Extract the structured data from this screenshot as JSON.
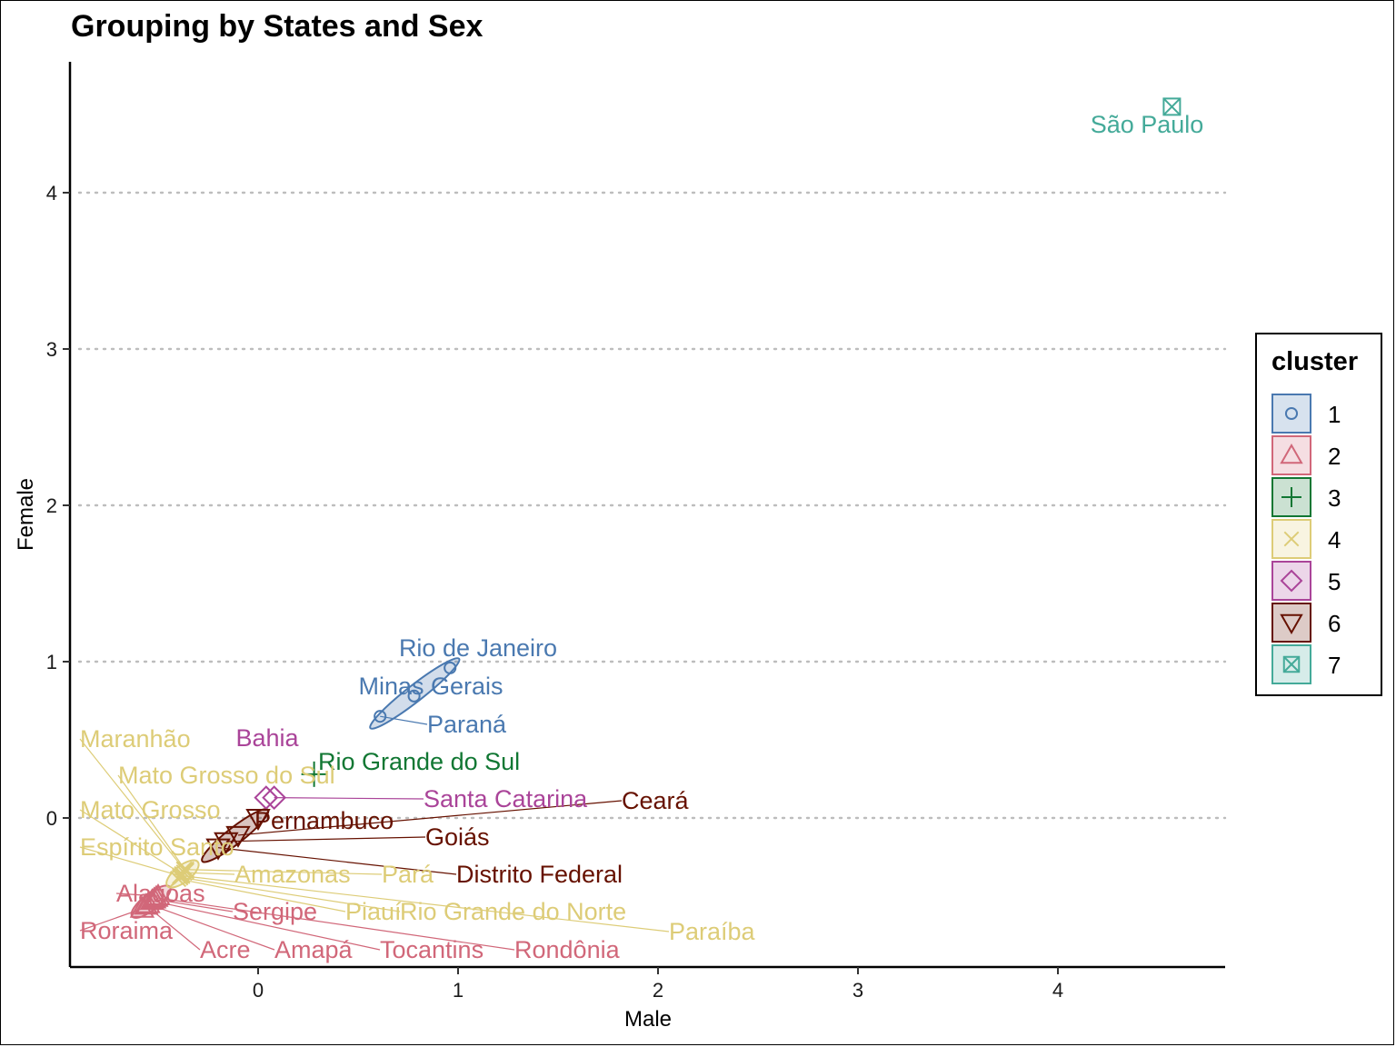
{
  "chart_data": {
    "type": "scatter",
    "title": "Grouping by States and Sex",
    "xlabel": "Male",
    "ylabel": "Female",
    "xlim": [
      -0.95,
      4.85
    ],
    "ylim": [
      -0.95,
      4.85
    ],
    "x_ticks": [
      "0",
      "1",
      "2",
      "3",
      "4"
    ],
    "y_ticks": [
      "0",
      "1",
      "2",
      "3",
      "4"
    ],
    "grid": "horizontal dotted",
    "legend": {
      "title": "cluster",
      "placement": "right",
      "items": [
        {
          "label": "1",
          "color": "#4a79b0",
          "shape": "circle"
        },
        {
          "label": "2",
          "color": "#d16779",
          "shape": "triangle"
        },
        {
          "label": "3",
          "color": "#117733",
          "shape": "plus"
        },
        {
          "label": "4",
          "color": "#ddcc77",
          "shape": "x"
        },
        {
          "label": "5",
          "color": "#aa4499",
          "shape": "diamond"
        },
        {
          "label": "6",
          "color": "#661100",
          "shape": "triangle-down"
        },
        {
          "label": "7",
          "color": "#44aa99",
          "shape": "square-x"
        }
      ]
    },
    "points": [
      {
        "name": "São Paulo",
        "cluster": "7",
        "x": 4.57,
        "y": 4.55
      },
      {
        "name": "Rio de Janeiro",
        "cluster": "1",
        "x": 0.96,
        "y": 0.96
      },
      {
        "name": "Minas Gerais",
        "cluster": "1",
        "x": 0.78,
        "y": 0.78
      },
      {
        "name": "Paraná",
        "cluster": "1",
        "x": 0.61,
        "y": 0.65
      },
      {
        "name": "Rio Grande do Sul",
        "cluster": "3",
        "x": 0.28,
        "y": 0.28
      },
      {
        "name": "Bahia",
        "cluster": "5",
        "x": 0.04,
        "y": 0.13
      },
      {
        "name": "Santa Catarina",
        "cluster": "5",
        "x": 0.08,
        "y": 0.13
      },
      {
        "name": "Pernambuco",
        "cluster": "6",
        "x": 0.0,
        "y": 0.0
      },
      {
        "name": "Ceará",
        "cluster": "6",
        "x": -0.1,
        "y": -0.11
      },
      {
        "name": "Goiás",
        "cluster": "6",
        "x": -0.16,
        "y": -0.15
      },
      {
        "name": "Distrito Federal",
        "cluster": "6",
        "x": -0.2,
        "y": -0.19
      },
      {
        "name": "Maranhão",
        "cluster": "4",
        "x": -0.37,
        "y": -0.33
      },
      {
        "name": "Mato Grosso do Sul",
        "cluster": "4",
        "x": -0.36,
        "y": -0.34
      },
      {
        "name": "Mato Grosso",
        "cluster": "4",
        "x": -0.38,
        "y": -0.36
      },
      {
        "name": "Espírito Santo",
        "cluster": "4",
        "x": -0.39,
        "y": -0.37
      },
      {
        "name": "Amazonas",
        "cluster": "4",
        "x": -0.37,
        "y": -0.35
      },
      {
        "name": "Pará",
        "cluster": "4",
        "x": -0.36,
        "y": -0.33
      },
      {
        "name": "Piauí",
        "cluster": "4",
        "x": -0.4,
        "y": -0.39
      },
      {
        "name": "Rio Grande do Norte",
        "cluster": "4",
        "x": -0.39,
        "y": -0.38
      },
      {
        "name": "Paraíba",
        "cluster": "4",
        "x": -0.38,
        "y": -0.37
      },
      {
        "name": "Alagoas",
        "cluster": "2",
        "x": -0.5,
        "y": -0.5
      },
      {
        "name": "Sergipe",
        "cluster": "2",
        "x": -0.52,
        "y": -0.52
      },
      {
        "name": "Roraima",
        "cluster": "2",
        "x": -0.58,
        "y": -0.58
      },
      {
        "name": "Acre",
        "cluster": "2",
        "x": -0.56,
        "y": -0.56
      },
      {
        "name": "Amapá",
        "cluster": "2",
        "x": -0.55,
        "y": -0.55
      },
      {
        "name": "Tocantins",
        "cluster": "2",
        "x": -0.53,
        "y": -0.53
      },
      {
        "name": "Rondônia",
        "cluster": "2",
        "x": -0.51,
        "y": -0.51
      }
    ]
  }
}
